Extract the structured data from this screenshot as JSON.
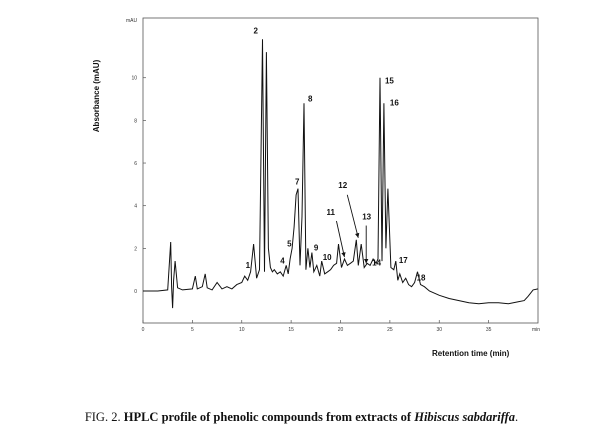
{
  "chart_data": {
    "type": "line",
    "y_unit": "mAU",
    "x_unit": "min",
    "xlabel": "Retention time (min)",
    "ylabel": "Absorbance (mAU)",
    "xlim": [
      0,
      40
    ],
    "ylim": [
      -1.5,
      12.8
    ],
    "x_ticks": [
      0,
      5,
      10,
      15,
      20,
      25,
      30,
      35
    ],
    "y_ticks": [
      0,
      2,
      4,
      6,
      8,
      10
    ],
    "grid": false,
    "series": [
      {
        "color": "#111111",
        "x": [
          0,
          1.5,
          2.5,
          2.8,
          2.9,
          3.0,
          3.1,
          3.25,
          3.5,
          4,
          5,
          5.3,
          5.5,
          6,
          6.3,
          6.5,
          7,
          7.5,
          8,
          8.5,
          9,
          9.5,
          10,
          10.3,
          10.6,
          10.9,
          11.2,
          11.5,
          11.8,
          12.1,
          12.3,
          12.5,
          12.7,
          12.9,
          13.1,
          13.3,
          13.6,
          13.9,
          14.2,
          14.5,
          14.7,
          14.9,
          15.1,
          15.3,
          15.5,
          15.7,
          15.9,
          16.1,
          16.3,
          16.5,
          16.7,
          16.9,
          17.1,
          17.3,
          17.6,
          17.9,
          18.1,
          18.4,
          18.7,
          19,
          19.3,
          19.6,
          19.8,
          20.1,
          20.4,
          20.7,
          21,
          21.3,
          21.6,
          21.8,
          22.1,
          22.4,
          22.7,
          23,
          23.3,
          23.6,
          23.8,
          24.0,
          24.2,
          24.4,
          24.6,
          24.8,
          25.1,
          25.4,
          25.6,
          25.8,
          26.0,
          26.3,
          26.6,
          26.9,
          27.2,
          27.5,
          27.8,
          28.1,
          28.5,
          29,
          30,
          31,
          32,
          33,
          34,
          35,
          36,
          37,
          38,
          38.6,
          39,
          39.5,
          40
        ],
        "y": [
          0,
          0,
          0.05,
          2.3,
          0.2,
          -0.8,
          0.5,
          1.4,
          0.15,
          0.05,
          0.1,
          0.7,
          0.1,
          0.2,
          0.8,
          0.15,
          0.05,
          0.4,
          0.1,
          0.2,
          0.1,
          0.3,
          0.4,
          0.7,
          0.5,
          0.9,
          2.2,
          0.6,
          1.0,
          11.8,
          0.9,
          11.2,
          2.0,
          1.1,
          0.9,
          1.0,
          0.8,
          0.9,
          0.7,
          1.2,
          0.8,
          1.5,
          2.0,
          3.0,
          4.5,
          4.8,
          1.2,
          3.5,
          8.8,
          1.0,
          2.0,
          1.1,
          1.8,
          0.9,
          1.2,
          0.7,
          1.4,
          0.8,
          0.9,
          1.0,
          1.2,
          1.3,
          2.2,
          1.1,
          1.5,
          1.2,
          1.3,
          1.4,
          2.4,
          1.2,
          2.2,
          1.1,
          1.3,
          1.2,
          1.5,
          1.3,
          1.5,
          10.0,
          1.4,
          8.8,
          2.0,
          4.8,
          1.1,
          1.0,
          1.4,
          0.5,
          0.8,
          0.4,
          0.6,
          0.3,
          0.2,
          0.4,
          0.9,
          0.3,
          0.2,
          0.0,
          -0.2,
          -0.35,
          -0.45,
          -0.55,
          -0.6,
          -0.55,
          -0.55,
          -0.6,
          -0.5,
          -0.45,
          -0.25,
          0.05,
          0.1
        ]
      }
    ],
    "annotations": [
      {
        "label": "1",
        "x": 10.9
      },
      {
        "label": "2",
        "x": 12.1
      },
      {
        "label": "4",
        "x": 14.5
      },
      {
        "label": "5",
        "x": 14.9
      },
      {
        "label": "7",
        "x": 15.7
      },
      {
        "label": "8",
        "x": 16.3
      },
      {
        "label": "9",
        "x": 17.1
      },
      {
        "label": "10",
        "x": 18.1
      },
      {
        "label": "11",
        "x": 20.4
      },
      {
        "label": "12",
        "x": 21.8
      },
      {
        "label": "13",
        "x": 22.4
      },
      {
        "label": "14",
        "x": 22.7
      },
      {
        "label": "15",
        "x": 24.2
      },
      {
        "label": "16",
        "x": 24.6
      },
      {
        "label": "17",
        "x": 25.4
      },
      {
        "label": "18",
        "x": 27.5
      }
    ]
  },
  "caption": {
    "prefix": "FIG. 2. ",
    "bold_text": "HPLC profile of phenolic compounds from extracts of ",
    "italic_text": "Hibiscus sabdariffa",
    "suffix": "."
  }
}
